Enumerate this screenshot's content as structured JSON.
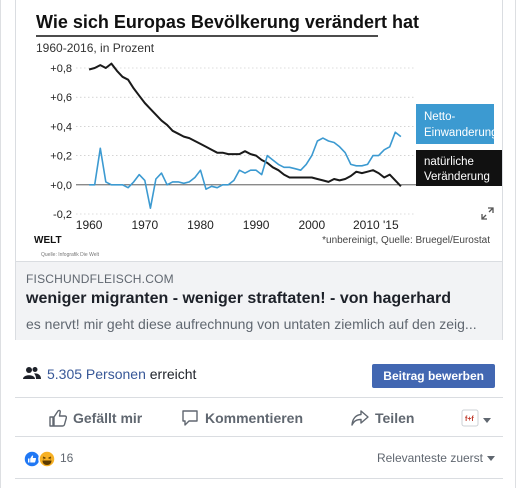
{
  "chart_data": {
    "type": "line",
    "title": "Wie sich Europas Bevölkerung verändert hat",
    "subtitle": "1960-2016, in Prozent",
    "x_ticks": [
      "1960",
      "1970",
      "1980",
      "1990",
      "2000",
      "2010 '15"
    ],
    "y_ticks": [
      "+0,8",
      "+0,6",
      "+0,4",
      "+0,2",
      "+0,0",
      "-0,2"
    ],
    "xlim": [
      1958,
      2018
    ],
    "ylim": [
      -0.2,
      0.8
    ],
    "series": [
      {
        "name": "natürliche Veränderung",
        "color": "#1a1a1a",
        "x": [
          1960,
          1961,
          1962,
          1963,
          1964,
          1965,
          1966,
          1967,
          1968,
          1969,
          1970,
          1971,
          1972,
          1973,
          1974,
          1975,
          1976,
          1977,
          1978,
          1979,
          1980,
          1981,
          1982,
          1983,
          1984,
          1985,
          1986,
          1987,
          1988,
          1989,
          1990,
          1991,
          1992,
          1993,
          1994,
          1995,
          1996,
          1997,
          1998,
          1999,
          2000,
          2001,
          2002,
          2003,
          2004,
          2005,
          2006,
          2007,
          2008,
          2009,
          2010,
          2011,
          2012,
          2013,
          2014,
          2015,
          2016
        ],
        "y": [
          0.79,
          0.8,
          0.82,
          0.8,
          0.83,
          0.78,
          0.74,
          0.72,
          0.66,
          0.61,
          0.56,
          0.52,
          0.48,
          0.44,
          0.41,
          0.37,
          0.35,
          0.33,
          0.32,
          0.3,
          0.28,
          0.26,
          0.24,
          0.22,
          0.22,
          0.21,
          0.21,
          0.21,
          0.23,
          0.21,
          0.2,
          0.17,
          0.15,
          0.12,
          0.1,
          0.07,
          0.05,
          0.05,
          0.05,
          0.05,
          0.05,
          0.04,
          0.03,
          0.02,
          0.04,
          0.03,
          0.04,
          0.06,
          0.09,
          0.08,
          0.09,
          0.1,
          0.08,
          0.05,
          0.07,
          0.03,
          -0.01
        ]
      },
      {
        "name": "Netto-Einwanderung*",
        "color": "#3c9ad1",
        "x": [
          1960,
          1961,
          1962,
          1963,
          1964,
          1965,
          1966,
          1967,
          1968,
          1969,
          1970,
          1971,
          1972,
          1973,
          1974,
          1975,
          1976,
          1977,
          1978,
          1979,
          1980,
          1981,
          1982,
          1983,
          1984,
          1985,
          1986,
          1987,
          1988,
          1989,
          1990,
          1991,
          1992,
          1993,
          1994,
          1995,
          1996,
          1997,
          1998,
          1999,
          2000,
          2001,
          2002,
          2003,
          2004,
          2005,
          2006,
          2007,
          2008,
          2009,
          2010,
          2011,
          2012,
          2013,
          2014,
          2015,
          2016
        ],
        "y": [
          0.0,
          0.0,
          0.25,
          0.02,
          0.0,
          0.0,
          0.0,
          -0.02,
          0.02,
          0.07,
          0.03,
          -0.16,
          0.04,
          0.08,
          0.0,
          0.02,
          0.02,
          0.01,
          0.02,
          0.05,
          0.1,
          -0.03,
          -0.01,
          -0.02,
          0.0,
          0.0,
          0.03,
          0.1,
          0.08,
          0.1,
          0.1,
          0.07,
          0.2,
          0.17,
          0.14,
          0.12,
          0.12,
          0.11,
          0.1,
          0.14,
          0.2,
          0.3,
          0.32,
          0.3,
          0.29,
          0.26,
          0.22,
          0.14,
          0.13,
          0.13,
          0.14,
          0.2,
          0.2,
          0.24,
          0.26,
          0.36,
          0.33
        ]
      }
    ],
    "legend": [
      {
        "label": "Netto-Einwanderung*",
        "style": "blue-box"
      },
      {
        "label": "natürliche Veränderung",
        "style": "black-box"
      }
    ],
    "brand": "WELT",
    "footnote": "*unbereinigt, Quelle: Bruegel/Eurostat",
    "credit": "Quelle: Infografik Die Welt"
  },
  "link": {
    "domain": "FISCHUNDFLEISCH.COM",
    "title": "weniger migranten - weniger straftaten! - von hagerhard",
    "description": "es nervt! mir geht diese aufrechnung von untaten ziemlich auf den zeig..."
  },
  "reach": {
    "count": "5.305 Personen",
    "suffix": " erreicht",
    "boost_label": "Beitrag bewerben"
  },
  "actions": {
    "like": "Gefällt mir",
    "comment": "Kommentieren",
    "share": "Teilen"
  },
  "reactions": {
    "count": "16",
    "sort_label": "Relevanteste zuerst"
  },
  "colors": {
    "accent": "#4267b2",
    "link": "#385898",
    "chart_blue": "#3c9ad1"
  }
}
